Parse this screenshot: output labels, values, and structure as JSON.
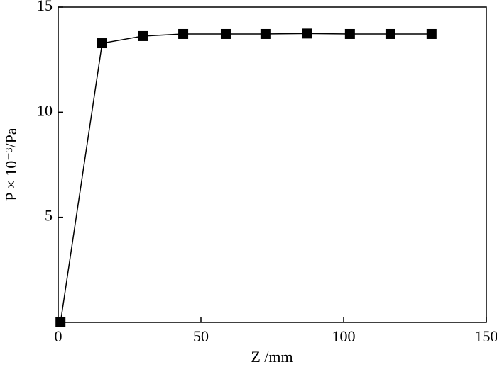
{
  "chart_data": {
    "type": "line",
    "xlabel": "Z /mm",
    "ylabel": "P × 10⁻³/Pa",
    "x": [
      0.8,
      15.4,
      29.6,
      43.8,
      58.7,
      72.6,
      87.3,
      102.2,
      116.4,
      130.8
    ],
    "series": [
      {
        "color": "#000000",
        "values": [
          0,
          13.28,
          13.62,
          13.72,
          13.72,
          13.72,
          13.74,
          13.72,
          13.72,
          13.72
        ]
      }
    ],
    "xlim": [
      0,
      150
    ],
    "xticks": [
      0,
      50,
      100,
      150
    ],
    "ylim": [
      0,
      15
    ],
    "yticks": [
      5,
      10,
      15
    ],
    "marker": "square"
  }
}
